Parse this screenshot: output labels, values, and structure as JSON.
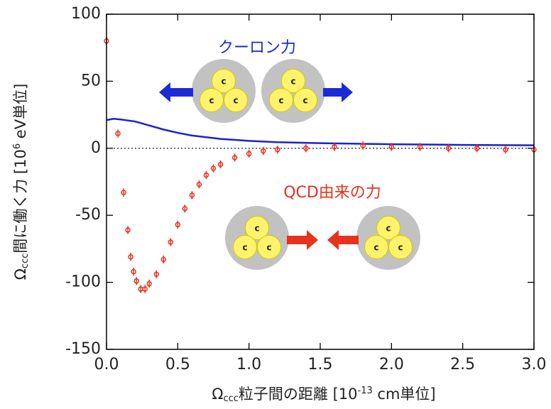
{
  "chart_data": {
    "type": "scatter",
    "ylabel_parts": [
      "Ω",
      "ccc",
      "間に働く力 [10",
      "6",
      " eV単位]"
    ],
    "xlabel_parts": [
      "Ω",
      "ccc",
      "粒子間の距離 [10",
      "-13",
      " cm単位]"
    ],
    "xlim": [
      0,
      3.0
    ],
    "ylim": [
      -150,
      100
    ],
    "xticks": [
      {
        "value": 0,
        "label": "0.0"
      },
      0.5,
      {
        "value": 1,
        "label": "1.0"
      },
      1.5,
      {
        "value": 2,
        "label": "2.0"
      },
      2.5,
      {
        "value": 3,
        "label": "3.0"
      }
    ],
    "yticks": [
      -150,
      -100,
      -50,
      0,
      50,
      100
    ],
    "hline": 0,
    "series": [
      {
        "type": "line",
        "color": "#1a22cc",
        "x": [
          0,
          0.05,
          0.1,
          0.2,
          0.3,
          0.4,
          0.5,
          0.6,
          0.8,
          1.0,
          1.2,
          1.5,
          2.0,
          2.5,
          3.0
        ],
        "values": [
          21,
          22,
          21.5,
          20,
          17,
          14,
          11.5,
          9.5,
          7,
          5.5,
          4.5,
          3.8,
          3,
          2.5,
          2.2
        ]
      },
      {
        "type": "errorbar",
        "color": "#e8321e",
        "x": [
          0.0,
          0.08,
          0.12,
          0.15,
          0.17,
          0.19,
          0.21,
          0.24,
          0.27,
          0.3,
          0.35,
          0.4,
          0.45,
          0.5,
          0.55,
          0.6,
          0.65,
          0.7,
          0.75,
          0.8,
          0.9,
          1.0,
          1.1,
          1.2,
          1.4,
          1.6,
          1.8,
          2.0,
          2.2,
          2.4,
          2.6,
          2.8,
          3.0
        ],
        "values": [
          80,
          11,
          -33,
          -61,
          -81,
          -92,
          -99,
          -105,
          -105,
          -101,
          -94,
          -83,
          -70,
          -57,
          -45,
          -35,
          -27,
          -20,
          -15,
          -12,
          -7,
          -4,
          -2,
          -1,
          0,
          1,
          2,
          1,
          1,
          0,
          0,
          -1,
          -1
        ],
        "errors": [
          3,
          3,
          3,
          3,
          3,
          3,
          3,
          3,
          3,
          3,
          3,
          3,
          3,
          3,
          3,
          3,
          3,
          3,
          3,
          3,
          3,
          3,
          3,
          3,
          3,
          3,
          3,
          3,
          3,
          3,
          3,
          3,
          3
        ]
      }
    ],
    "annotations": [
      {
        "text": "クーロン力",
        "color": "#1a2bd6"
      },
      {
        "text": "QCD由来の力",
        "color": "#e8321e"
      }
    ],
    "particle_label": "c"
  }
}
